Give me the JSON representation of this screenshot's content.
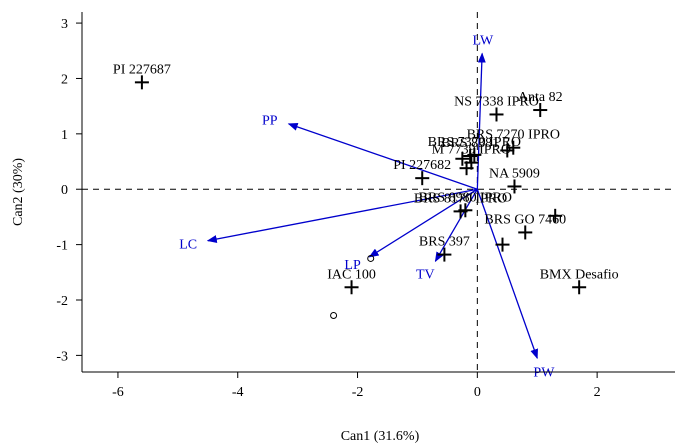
{
  "chart_data": {
    "type": "scatter",
    "title": "",
    "xlabel": "Can1 (31.6%)",
    "ylabel": "Can2 (30%)",
    "xlim": [
      -6.6,
      3.3
    ],
    "ylim": [
      -3.3,
      3.2
    ],
    "xticks": [
      -6,
      -4,
      -2,
      0,
      2
    ],
    "yticks": [
      -3,
      -2,
      -1,
      0,
      1,
      2,
      3
    ],
    "reference_lines": {
      "x": 0,
      "y": 0,
      "style": "dashed"
    },
    "grid": false,
    "colors": {
      "points": "#000000",
      "vectors": "#0000cc"
    },
    "points": [
      {
        "label": "PI 227687",
        "x": -5.6,
        "y": 1.93
      },
      {
        "label": "PI 227682",
        "x": -0.92,
        "y": 0.2
      },
      {
        "label": "",
        "x": -0.25,
        "y": 0.55
      },
      {
        "label": "",
        "x": -0.18,
        "y": 0.38
      },
      {
        "label": "BRS 8381",
        "x": -0.12,
        "y": 0.6
      },
      {
        "label": "BRS 7370 IPRO",
        "x": -0.05,
        "y": 0.62
      },
      {
        "label": "M 7739 IPRO",
        "x": -0.1,
        "y": 0.48
      },
      {
        "label": "NS 7338 IPRO",
        "x": 0.32,
        "y": 1.35
      },
      {
        "label": "Anta 82",
        "x": 1.05,
        "y": 1.43
      },
      {
        "label": "BRS 7270 IPRO",
        "x": 0.6,
        "y": 0.75
      },
      {
        "label": "",
        "x": 0.5,
        "y": 0.7
      },
      {
        "label": "NA 5909",
        "x": 0.62,
        "y": 0.05
      },
      {
        "label": "BRS 8980 IPRO",
        "x": -0.2,
        "y": -0.38
      },
      {
        "label": "BRS 8170 IPRO",
        "x": -0.28,
        "y": -0.4
      },
      {
        "label": "",
        "x": 1.3,
        "y": -0.48
      },
      {
        "label": "BRS GO 7460",
        "x": 0.8,
        "y": -0.78
      },
      {
        "label": "",
        "x": 0.42,
        "y": -1.0
      },
      {
        "label": "BRS 397",
        "x": -0.55,
        "y": -1.18
      },
      {
        "label": "IAC 100",
        "x": -2.1,
        "y": -1.77
      },
      {
        "label": "BMX Desafio",
        "x": 1.7,
        "y": -1.77
      }
    ],
    "circles": [
      {
        "x": -1.78,
        "y": -1.25
      },
      {
        "x": -2.4,
        "y": -2.28
      }
    ],
    "vectors": [
      {
        "label": "LW",
        "x": 0.08,
        "y": 2.45
      },
      {
        "label": "PP",
        "x": -3.15,
        "y": 1.18
      },
      {
        "label": "LC",
        "x": -4.5,
        "y": -0.93
      },
      {
        "label": "LP",
        "x": -1.8,
        "y": -1.22
      },
      {
        "label": "TV",
        "x": -0.7,
        "y": -1.3
      },
      {
        "label": "PW",
        "x": 1.0,
        "y": -3.05
      }
    ]
  }
}
